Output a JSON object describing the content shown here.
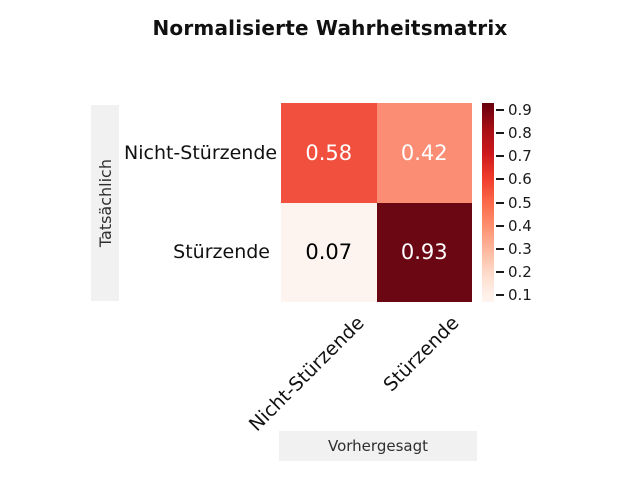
{
  "title": "Normalisierte Wahrheitsmatrix",
  "colors": {
    "background": "#ffffff",
    "axis_band": "#f1f1f1",
    "title_text": "#111111",
    "label_text": "#111111",
    "axis_title_text": "#2f2f2f"
  },
  "chart_data": {
    "type": "heatmap",
    "title": "Normalisierte Wahrheitsmatrix",
    "xlabel": "Vorhergesagt",
    "ylabel": "Tatsächlich",
    "x_categories": [
      "Nicht-Stürzende",
      "Stürzende"
    ],
    "y_categories": [
      "Nicht-Stürzende",
      "Stürzende"
    ],
    "values": [
      [
        0.58,
        0.42
      ],
      [
        0.07,
        0.93
      ]
    ],
    "cell_labels": [
      [
        "0.58",
        "0.42"
      ],
      [
        "0.07",
        "0.93"
      ]
    ],
    "cell_colors": [
      [
        "#f2503e",
        "#fc8d75"
      ],
      [
        "#fdf3ef",
        "#6b0712"
      ]
    ],
    "cell_text_colors": [
      [
        "#ffffff",
        "#ffffff"
      ],
      [
        "#000000",
        "#ffffff"
      ]
    ],
    "grid": false,
    "legend": false,
    "colorbar": {
      "position": "right",
      "vmin": 0.07,
      "vmax": 0.93,
      "ticks": [
        0.9,
        0.8,
        0.7,
        0.6,
        0.5,
        0.4,
        0.3,
        0.2,
        0.1
      ],
      "tick_labels": [
        "0.9",
        "0.8",
        "0.7",
        "0.6",
        "0.5",
        "0.4",
        "0.3",
        "0.2",
        "0.1"
      ],
      "colormap": "Reds",
      "gradient_stops_bottom_to_top": [
        "#fff5f0",
        "#fee0d2",
        "#fcbba1",
        "#fc9272",
        "#fb6a4a",
        "#ef3b2c",
        "#cb181d",
        "#a50f15",
        "#67000d"
      ]
    }
  }
}
